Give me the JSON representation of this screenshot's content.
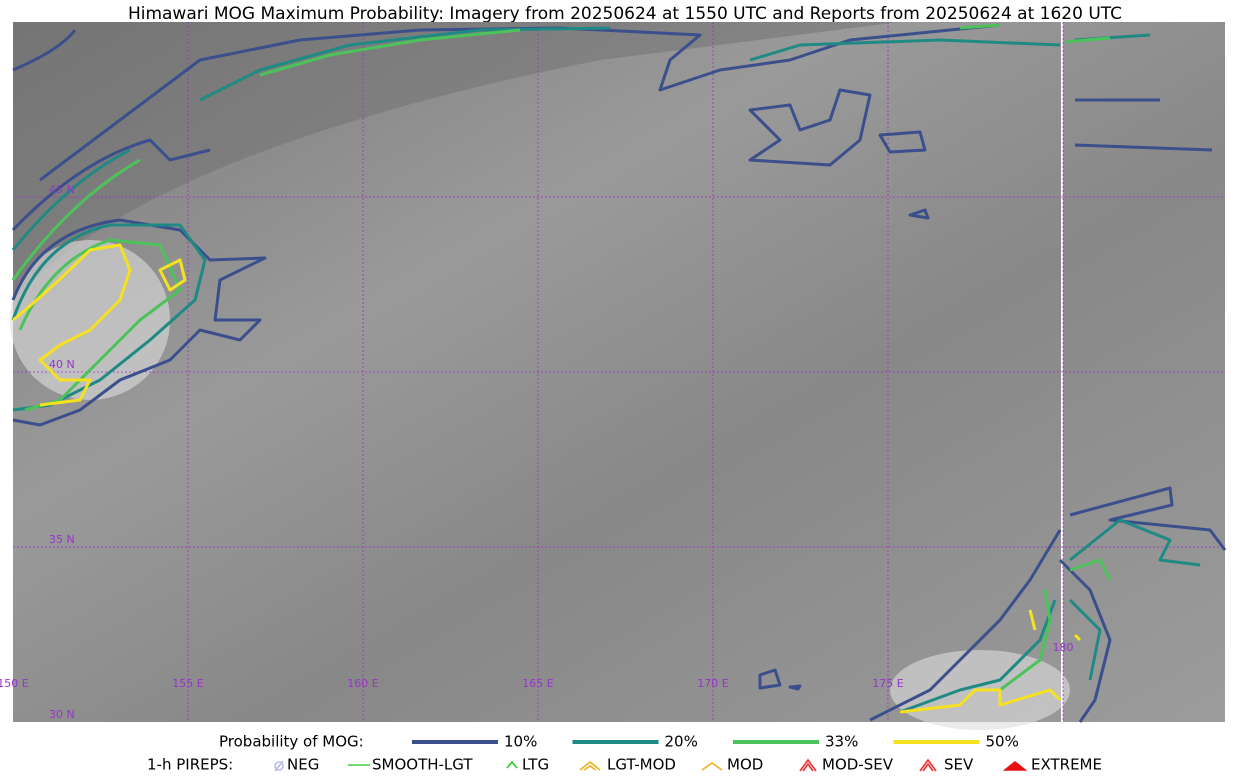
{
  "title": "Himawari MOG Maximum Probability: Imagery from 20250624 at 1550 UTC and Reports from 20250624 at 1620 UTC",
  "map": {
    "lat_labels": [
      "45 N",
      "40 N",
      "35 N",
      "30 N"
    ],
    "lon_labels": [
      "150 E",
      "155 E",
      "160 E",
      "165 E",
      "170 E",
      "175 E",
      "180"
    ]
  },
  "legend": {
    "probability_title": "Probability of MOG:",
    "probability_levels": [
      {
        "label": "10%",
        "color": "#3b4f8c"
      },
      {
        "label": "20%",
        "color": "#1f8a84"
      },
      {
        "label": "33%",
        "color": "#4cc35a"
      },
      {
        "label": "50%",
        "color": "#f5e11f"
      }
    ],
    "pireps_title": "1-h PIREPS:",
    "pireps": [
      {
        "label": "NEG",
        "color": "#b8b8f0"
      },
      {
        "label": "SMOOTH-LGT",
        "color": "#44d044"
      },
      {
        "label": "LTG",
        "color": "#22cc22"
      },
      {
        "label": "LGT-MOD",
        "color": "#f0b020"
      },
      {
        "label": "MOD",
        "color": "#f0b020"
      },
      {
        "label": "MOD-SEV",
        "color": "#e83030"
      },
      {
        "label": "SEV",
        "color": "#e83030"
      },
      {
        "label": "EXTREME",
        "color": "#e81010"
      }
    ]
  }
}
